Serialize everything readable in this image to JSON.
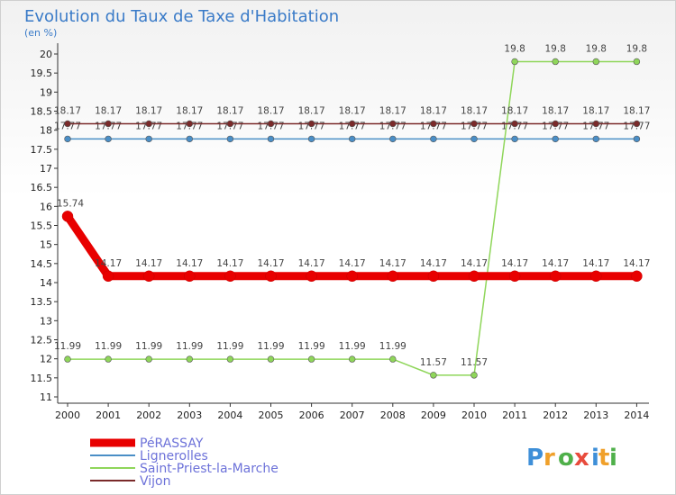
{
  "chart_data": {
    "type": "line",
    "title": "Evolution du Taux de Taxe d'Habitation",
    "subtitle": "(en %)",
    "x": [
      "2000",
      "2001",
      "2002",
      "2003",
      "2004",
      "2005",
      "2006",
      "2007",
      "2008",
      "2009",
      "2010",
      "2011",
      "2012",
      "2013",
      "2014"
    ],
    "ylim": [
      10.8,
      20.1
    ],
    "y_ticks": [
      "11",
      "11.5",
      "12",
      "12.5",
      "13",
      "13.5",
      "14",
      "14.5",
      "15",
      "15.5",
      "16",
      "16.5",
      "17",
      "17.5",
      "18",
      "18.5",
      "19",
      "19.5",
      "20"
    ],
    "grid": false,
    "legend_position": "bottom-left",
    "series": [
      {
        "name": "PéRASSAY",
        "color": "#e80000",
        "emphasis": true,
        "values": [
          15.74,
          14.17,
          14.17,
          14.17,
          14.17,
          14.17,
          14.17,
          14.17,
          14.17,
          14.17,
          14.17,
          14.17,
          14.17,
          14.17,
          14.17
        ],
        "labels": [
          "15.74",
          "14.17",
          "14.17",
          "14.17",
          "14.17",
          "14.17",
          "14.17",
          "14.17",
          "14.17",
          "14.17",
          "14.17",
          "14.17",
          "14.17",
          "14.17",
          "14.17"
        ]
      },
      {
        "name": "Lignerolles",
        "color": "#4a8ec6",
        "values": [
          17.77,
          17.77,
          17.77,
          17.77,
          17.77,
          17.77,
          17.77,
          17.77,
          17.77,
          17.77,
          17.77,
          17.77,
          17.77,
          17.77,
          17.77
        ],
        "labels": [
          "17.77",
          "17.77",
          "17.77",
          "17.77",
          "17.77",
          "17.77",
          "17.77",
          "17.77",
          "17.77",
          "17.77",
          "17.77",
          "17.77",
          "17.77",
          "17.77",
          "17.77"
        ]
      },
      {
        "name": "Saint-Priest-la-Marche",
        "color": "#8fd65a",
        "values": [
          11.99,
          11.99,
          11.99,
          11.99,
          11.99,
          11.99,
          11.99,
          11.99,
          11.99,
          11.57,
          11.57,
          19.8,
          19.8,
          19.8,
          19.8
        ],
        "labels": [
          "11.99",
          "11.99",
          "11.99",
          "11.99",
          "11.99",
          "11.99",
          "11.99",
          "11.99",
          "11.99",
          "11.57",
          "11.57",
          "19.8",
          "19.8",
          "19.8",
          "19.8"
        ]
      },
      {
        "name": "Vijon",
        "color": "#7a2a2a",
        "values": [
          18.17,
          18.17,
          18.17,
          18.17,
          18.17,
          18.17,
          18.17,
          18.17,
          18.17,
          18.17,
          18.17,
          18.17,
          18.17,
          18.17,
          18.17
        ],
        "labels": [
          "18.17",
          "18.17",
          "18.17",
          "18.17",
          "18.17",
          "18.17",
          "18.17",
          "18.17",
          "18.17",
          "18.17",
          "18.17",
          "18.17",
          "18.17",
          "18.17",
          "18.17"
        ]
      }
    ]
  },
  "logo": {
    "letters": [
      "P",
      "r",
      "o",
      "x",
      "i",
      "t",
      "i"
    ],
    "colors": [
      "#3e8fd8",
      "#f0a02a",
      "#4fb04a",
      "#e84b3c",
      "#3e8fd8",
      "#f0a02a",
      "#4fb04a"
    ]
  }
}
